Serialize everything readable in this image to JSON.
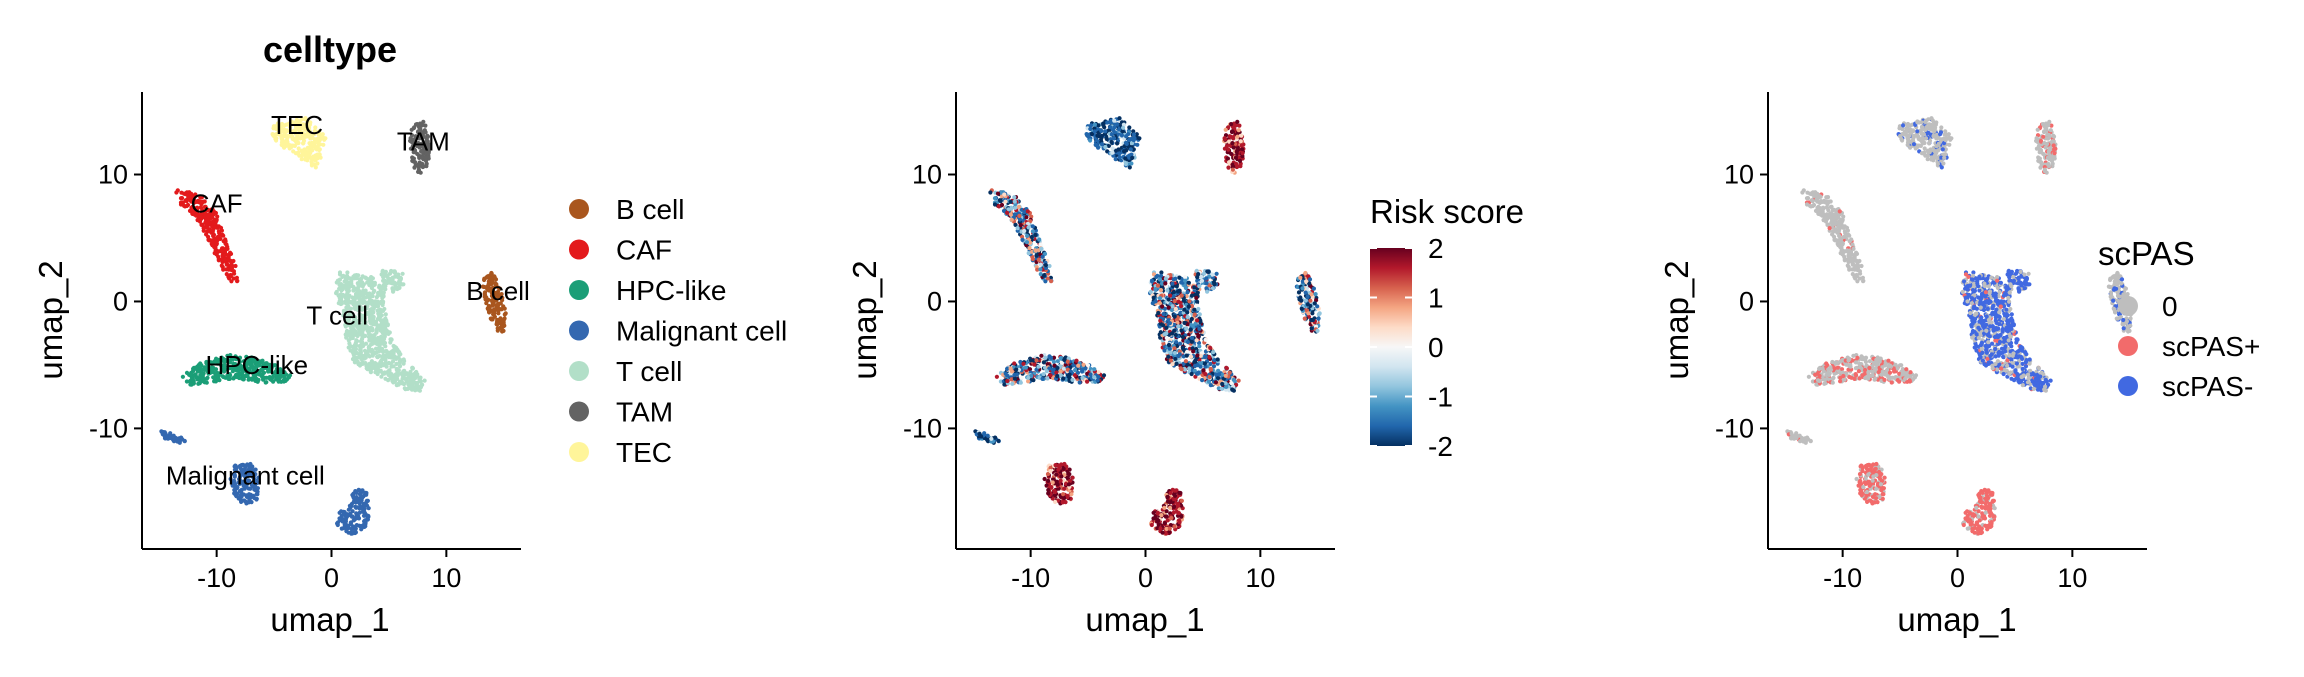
{
  "chart_data": [
    {
      "type": "scatter",
      "title": "celltype",
      "xlabel": "umap_1",
      "ylabel": "umap_2",
      "xlim": [
        -16.5,
        16.5
      ],
      "ylim": [
        -19.5,
        16.5
      ],
      "xticks": [
        -10,
        0,
        10
      ],
      "yticks": [
        -10,
        0,
        10
      ],
      "grid": false,
      "legend_position": "right",
      "legend": {
        "entries": [
          {
            "name": "B cell",
            "color": "#A9561E"
          },
          {
            "name": "CAF",
            "color": "#E31A1C"
          },
          {
            "name": "HPC-like",
            "color": "#1B9E77"
          },
          {
            "name": "Malignant cell",
            "color": "#3468B0"
          },
          {
            "name": "T cell",
            "color": "#B2DFC8"
          },
          {
            "name": "TAM",
            "color": "#636363"
          },
          {
            "name": "TEC",
            "color": "#FFF59A"
          }
        ]
      },
      "cluster_labels": [
        {
          "text": "TEC",
          "x": -3.0,
          "y": 13.2
        },
        {
          "text": "TAM",
          "x": 8.0,
          "y": 11.9
        },
        {
          "text": "CAF",
          "x": -10.0,
          "y": 7.0
        },
        {
          "text": "B cell",
          "x": 14.5,
          "y": 0.1
        },
        {
          "text": "T cell",
          "x": 0.5,
          "y": -1.8
        },
        {
          "text": "HPC-like",
          "x": -6.5,
          "y": -5.7
        },
        {
          "text": "Malignant cell",
          "x": -7.5,
          "y": -14.4
        }
      ]
    },
    {
      "type": "scatter",
      "xlabel": "umap_1",
      "ylabel": "umap_2",
      "xlim": [
        -16.5,
        16.5
      ],
      "ylim": [
        -19.5,
        16.5
      ],
      "xticks": [
        -10,
        0,
        10
      ],
      "yticks": [
        -10,
        0,
        10
      ],
      "grid": false,
      "legend_position": "right",
      "legend": {
        "title": "Risk score",
        "type": "colorbar",
        "range": [
          -2,
          2
        ],
        "ticks": [
          2,
          1,
          0,
          -1,
          -2
        ],
        "colors": [
          "#053061",
          "#2166AC",
          "#4393C3",
          "#92C5DE",
          "#D1E5F0",
          "#F7F7F7",
          "#FDDBC7",
          "#F4A582",
          "#D6604D",
          "#B2182B",
          "#67001F"
        ]
      }
    },
    {
      "type": "scatter",
      "xlabel": "umap_1",
      "ylabel": "umap_2",
      "xlim": [
        -16.5,
        16.5
      ],
      "ylim": [
        -19.5,
        16.5
      ],
      "xticks": [
        -10,
        0,
        10
      ],
      "yticks": [
        -10,
        0,
        10
      ],
      "grid": false,
      "legend_position": "right",
      "legend": {
        "title": "scPAS",
        "entries": [
          {
            "name": "0",
            "color": "#BEBEBE"
          },
          {
            "name": "scPAS+",
            "color": "#F26B6B"
          },
          {
            "name": "scPAS-",
            "color": "#4169E1"
          }
        ]
      }
    }
  ],
  "clusters": [
    {
      "name": "B cell",
      "shape": [
        [
          13.2,
          2.4
        ],
        [
          14.2,
          2.2
        ],
        [
          14.9,
          0.5
        ],
        [
          15.2,
          -1.0
        ],
        [
          15.0,
          -2.4
        ],
        [
          14.2,
          -2.3
        ],
        [
          13.6,
          -0.8
        ],
        [
          13.1,
          0.6
        ]
      ],
      "risk": "mixed",
      "pas": "grey-blue"
    },
    {
      "name": "CAF",
      "shape": [
        [
          -13.5,
          8.8
        ],
        [
          -11.8,
          8.5
        ],
        [
          -10.3,
          7.7
        ],
        [
          -9.8,
          6.3
        ],
        [
          -9.2,
          4.9
        ],
        [
          -8.4,
          3.0
        ],
        [
          -8.1,
          1.6
        ],
        [
          -8.8,
          1.5
        ],
        [
          -9.9,
          3.2
        ],
        [
          -10.8,
          5.0
        ],
        [
          -11.8,
          6.4
        ],
        [
          -12.9,
          7.4
        ],
        [
          -13.6,
          8.2
        ]
      ],
      "risk": "mixed",
      "pas": "grey"
    },
    {
      "name": "HPC-like",
      "shape": [
        [
          -12.5,
          -5.5
        ],
        [
          -11.0,
          -4.6
        ],
        [
          -9.0,
          -4.2
        ],
        [
          -7.0,
          -4.4
        ],
        [
          -5.0,
          -4.9
        ],
        [
          -3.5,
          -5.6
        ],
        [
          -3.8,
          -6.3
        ],
        [
          -6.0,
          -6.4
        ],
        [
          -8.5,
          -6.1
        ],
        [
          -10.5,
          -6.4
        ],
        [
          -12.4,
          -6.6
        ],
        [
          -13.0,
          -6.0
        ]
      ],
      "risk": "mixed",
      "pas": "red-grey"
    },
    {
      "name": "Malignant cell",
      "shape": [
        [
          -15.0,
          -10.0
        ],
        [
          -13.5,
          -10.5
        ],
        [
          -12.5,
          -11.0
        ],
        [
          -13.0,
          -11.3
        ],
        [
          -14.5,
          -10.8
        ]
      ],
      "risk": "blue",
      "pas": "grey"
    },
    {
      "name": "Malignant cell",
      "shape": [
        [
          -8.4,
          -12.9
        ],
        [
          -7.0,
          -12.7
        ],
        [
          -6.2,
          -13.8
        ],
        [
          -6.5,
          -15.6
        ],
        [
          -7.5,
          -16.2
        ],
        [
          -8.4,
          -15.4
        ],
        [
          -8.8,
          -14.0
        ]
      ],
      "risk": "red",
      "pas": "red"
    },
    {
      "name": "Malignant cell",
      "shape": [
        [
          1.8,
          -14.8
        ],
        [
          3.0,
          -14.9
        ],
        [
          3.3,
          -16.2
        ],
        [
          3.2,
          -17.8
        ],
        [
          1.9,
          -18.4
        ],
        [
          0.6,
          -17.9
        ],
        [
          0.3,
          -16.8
        ],
        [
          1.6,
          -16.1
        ]
      ],
      "risk": "red",
      "pas": "red"
    },
    {
      "name": "T cell",
      "shape": [
        [
          0.6,
          2.4
        ],
        [
          3.5,
          2.0
        ],
        [
          4.6,
          0.8
        ],
        [
          4.8,
          -1.5
        ],
        [
          5.4,
          -3.3
        ],
        [
          6.5,
          -4.7
        ],
        [
          8.2,
          -6.3
        ],
        [
          8.2,
          -7.1
        ],
        [
          6.3,
          -6.9
        ],
        [
          4.7,
          -6.1
        ],
        [
          3.0,
          -5.5
        ],
        [
          1.8,
          -4.7
        ],
        [
          1.3,
          -3.0
        ],
        [
          0.9,
          -1.0
        ],
        [
          0.3,
          0.8
        ]
      ],
      "risk": "mixed",
      "pas": "blue-grey"
    },
    {
      "name": "T cell",
      "shape": [
        [
          4.3,
          2.4
        ],
        [
          6.1,
          2.5
        ],
        [
          6.6,
          1.4
        ],
        [
          5.3,
          0.7
        ],
        [
          4.2,
          1.1
        ]
      ],
      "risk": "mixed",
      "pas": "blue"
    },
    {
      "name": "TAM",
      "shape": [
        [
          6.9,
          13.8
        ],
        [
          8.1,
          14.2
        ],
        [
          8.6,
          12.5
        ],
        [
          8.4,
          10.6
        ],
        [
          7.7,
          10.0
        ],
        [
          7.0,
          10.8
        ],
        [
          6.8,
          12.3
        ]
      ],
      "risk": "red",
      "pas": "grey-red"
    },
    {
      "name": "TEC",
      "shape": [
        [
          -5.0,
          14.0
        ],
        [
          -2.3,
          14.5
        ],
        [
          -0.5,
          13.0
        ],
        [
          -0.8,
          11.6
        ],
        [
          -1.3,
          10.5
        ],
        [
          -2.8,
          11.3
        ],
        [
          -4.2,
          12.1
        ],
        [
          -5.2,
          13.0
        ]
      ],
      "risk": "blue",
      "pas": "grey-blue"
    }
  ]
}
